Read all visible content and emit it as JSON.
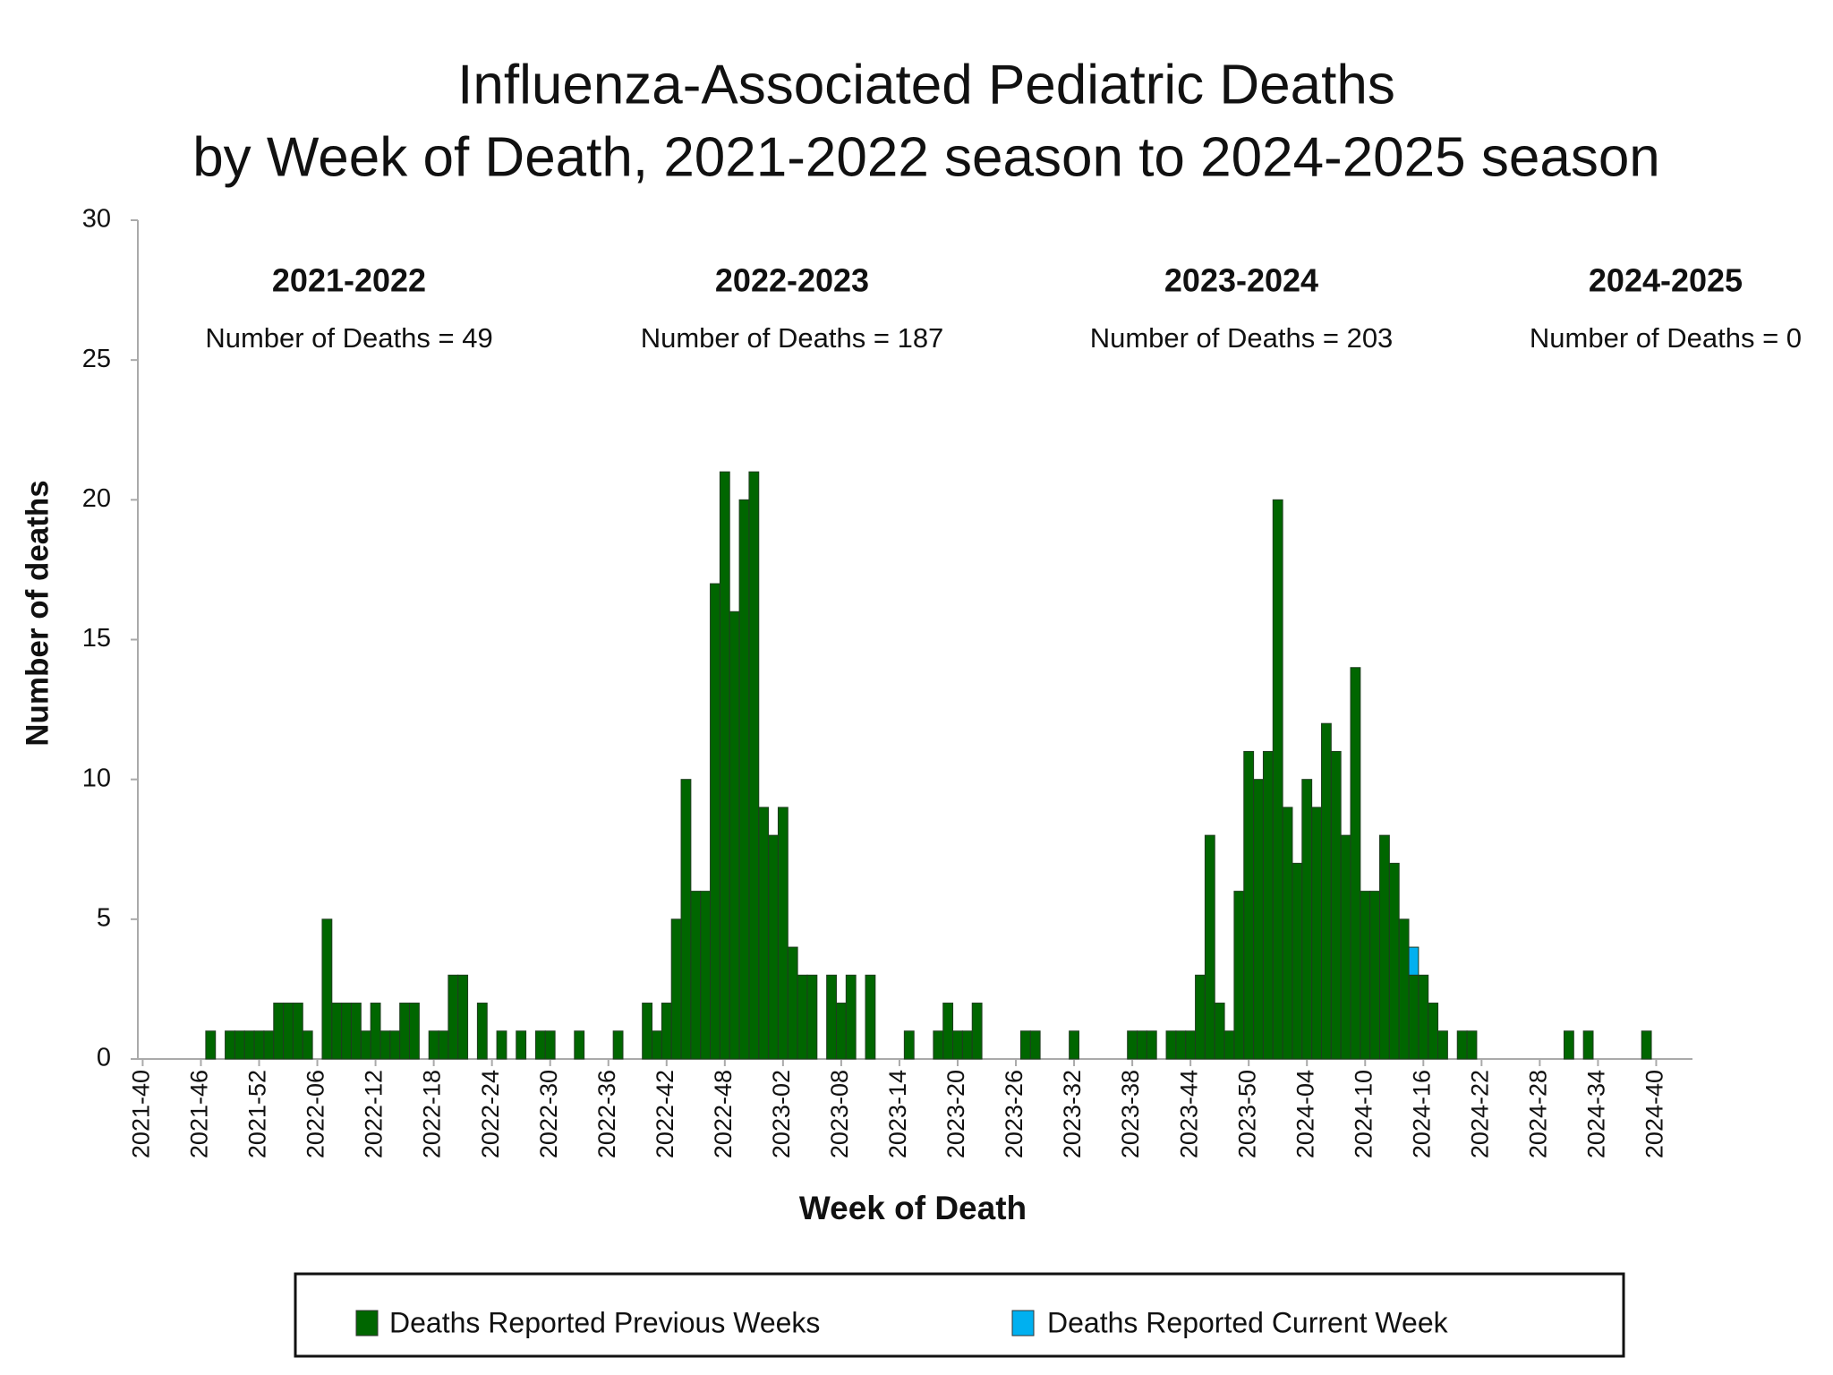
{
  "chart_data": {
    "type": "bar",
    "stacked": true,
    "title": [
      "Influenza-Associated Pediatric Deaths",
      "by Week of Death, 2021-2022 season to 2024-2025 season"
    ],
    "x_label": "Week of Death",
    "y_label": "Number of deaths",
    "annotations": [
      {
        "title": "2021-2022",
        "text": "Number of Deaths = 49"
      },
      {
        "title": "2022-2023",
        "text": "Number of Deaths = 187"
      },
      {
        "title": "2023-2024",
        "text": "Number of Deaths = 203"
      },
      {
        "title": "2024-2025",
        "text": "Number of Deaths = 0"
      }
    ],
    "categories": [
      "2021-40",
      null,
      null,
      null,
      null,
      null,
      "2021-46",
      null,
      null,
      null,
      null,
      null,
      "2021-52",
      null,
      null,
      null,
      null,
      null,
      "2022-06",
      null,
      null,
      null,
      null,
      null,
      "2022-12",
      null,
      null,
      null,
      null,
      null,
      "2022-18",
      null,
      null,
      null,
      null,
      null,
      "2022-24",
      null,
      null,
      null,
      null,
      null,
      "2022-30",
      null,
      null,
      null,
      null,
      null,
      "2022-36",
      null,
      null,
      null,
      null,
      null,
      "2022-42",
      null,
      null,
      null,
      null,
      null,
      "2022-48",
      null,
      null,
      null,
      null,
      null,
      "2023-02",
      null,
      null,
      null,
      null,
      null,
      "2023-08",
      null,
      null,
      null,
      null,
      null,
      "2023-14",
      null,
      null,
      null,
      null,
      null,
      "2023-20",
      null,
      null,
      null,
      null,
      null,
      "2023-26",
      null,
      null,
      null,
      null,
      null,
      "2023-32",
      null,
      null,
      null,
      null,
      null,
      "2023-38",
      null,
      null,
      null,
      null,
      null,
      "2023-44",
      null,
      null,
      null,
      null,
      null,
      "2023-50",
      null,
      null,
      null,
      null,
      null,
      "2024-04",
      null,
      null,
      null,
      null,
      null,
      "2024-10",
      null,
      null,
      null,
      null,
      null,
      "2024-16",
      null,
      null,
      null,
      null,
      null,
      "2024-22",
      null,
      null,
      null,
      null,
      null,
      "2024-28",
      null,
      null,
      null,
      null,
      null,
      "2024-34",
      null,
      null,
      null,
      null,
      null,
      "2024-40"
    ],
    "series": [
      {
        "name": "Deaths Reported Previous Weeks",
        "color": "#006600",
        "values": [
          0,
          0,
          0,
          0,
          0,
          0,
          0,
          1,
          0,
          1,
          1,
          1,
          1,
          1,
          2,
          2,
          2,
          1,
          0,
          5,
          2,
          2,
          2,
          1,
          2,
          1,
          1,
          2,
          2,
          0,
          1,
          1,
          3,
          3,
          0,
          2,
          0,
          1,
          0,
          1,
          0,
          1,
          1,
          0,
          0,
          1,
          0,
          0,
          0,
          1,
          0,
          0,
          2,
          1,
          2,
          5,
          10,
          6,
          6,
          17,
          21,
          16,
          20,
          21,
          9,
          8,
          9,
          4,
          3,
          3,
          0,
          3,
          2,
          3,
          0,
          3,
          0,
          0,
          0,
          1,
          0,
          0,
          1,
          2,
          1,
          1,
          2,
          0,
          0,
          0,
          0,
          1,
          1,
          0,
          0,
          0,
          1,
          0,
          0,
          0,
          0,
          0,
          1,
          1,
          1,
          0,
          1,
          1,
          1,
          3,
          8,
          2,
          1,
          6,
          11,
          10,
          11,
          20,
          9,
          7,
          10,
          9,
          12,
          11,
          8,
          14,
          6,
          6,
          8,
          7,
          5,
          3,
          3,
          2,
          1,
          0,
          1,
          1,
          0,
          0,
          0,
          0,
          0,
          0,
          0,
          0,
          0,
          1,
          0,
          1,
          0,
          0,
          0,
          0,
          0,
          1,
          0
        ]
      },
      {
        "name": "Deaths Reported Current Week",
        "color": "#00b0f0",
        "values": [
          0,
          0,
          0,
          0,
          0,
          0,
          0,
          0,
          0,
          0,
          0,
          0,
          0,
          0,
          0,
          0,
          0,
          0,
          0,
          0,
          0,
          0,
          0,
          0,
          0,
          0,
          0,
          0,
          0,
          0,
          0,
          0,
          0,
          0,
          0,
          0,
          0,
          0,
          0,
          0,
          0,
          0,
          0,
          0,
          0,
          0,
          0,
          0,
          0,
          0,
          0,
          0,
          0,
          0,
          0,
          0,
          0,
          0,
          0,
          0,
          0,
          0,
          0,
          0,
          0,
          0,
          0,
          0,
          0,
          0,
          0,
          0,
          0,
          0,
          0,
          0,
          0,
          0,
          0,
          0,
          0,
          0,
          0,
          0,
          0,
          0,
          0,
          0,
          0,
          0,
          0,
          0,
          0,
          0,
          0,
          0,
          0,
          0,
          0,
          0,
          0,
          0,
          0,
          0,
          0,
          0,
          0,
          0,
          0,
          0,
          0,
          0,
          0,
          0,
          0,
          0,
          0,
          0,
          0,
          0,
          0,
          0,
          0,
          0,
          0,
          0,
          0,
          0,
          0,
          0,
          0,
          1,
          0,
          0,
          0,
          0,
          0,
          0,
          0,
          0,
          0,
          0,
          0,
          0,
          0,
          0,
          0,
          0,
          0,
          0,
          0,
          0,
          0,
          0,
          0,
          0,
          0
        ]
      }
    ],
    "ylim": [
      0,
      30
    ],
    "yticks": [
      0,
      5,
      10,
      15,
      20,
      25,
      30
    ],
    "grid": false,
    "legend": "bottom"
  }
}
